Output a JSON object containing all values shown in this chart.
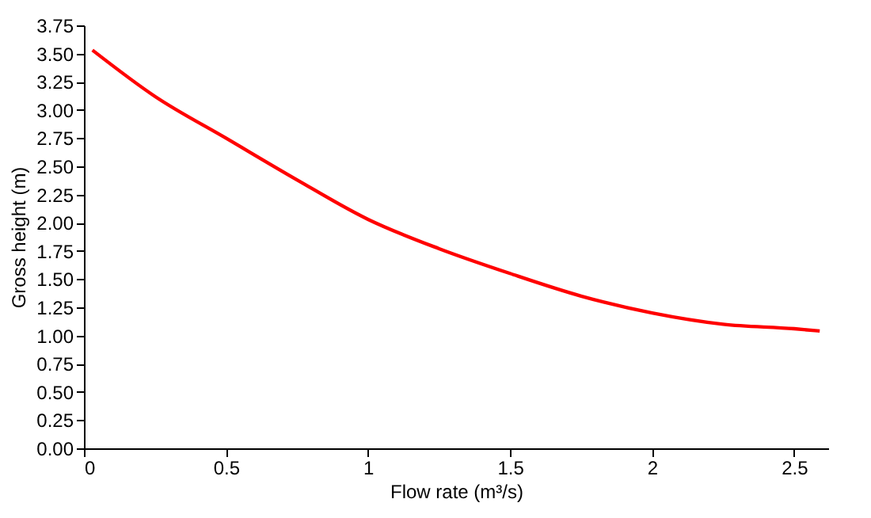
{
  "chart_data": {
    "type": "line",
    "xlabel": "Flow rate (m³/s)",
    "ylabel": "Gross height (m)",
    "x": [
      0.03,
      0.25,
      0.5,
      0.75,
      1.0,
      1.25,
      1.5,
      1.75,
      2.0,
      2.25,
      2.5,
      2.59
    ],
    "series": [
      {
        "color": "#ff0000",
        "values": [
          3.53,
          3.12,
          2.75,
          2.38,
          2.03,
          1.77,
          1.55,
          1.35,
          1.2,
          1.1,
          1.06,
          1.04
        ]
      }
    ],
    "xlim": [
      0,
      2.62
    ],
    "xticks": [
      0,
      0.5,
      1,
      1.5,
      2,
      2.5
    ],
    "ylim": [
      0,
      3.75
    ],
    "yticks": [
      {
        "value": 0,
        "label": "0.00"
      },
      {
        "value": 0.25,
        "label": "0.25"
      },
      {
        "value": 0.5,
        "label": "0.50"
      },
      {
        "value": 0.75,
        "label": "0.75"
      },
      {
        "value": 1,
        "label": "1.00"
      },
      {
        "value": 1.25,
        "label": "1.25"
      },
      {
        "value": 1.5,
        "label": "1.50"
      },
      {
        "value": 1.75,
        "label": "1.75"
      },
      {
        "value": 2,
        "label": "2.00"
      },
      {
        "value": 2.25,
        "label": "2.25"
      },
      {
        "value": 2.5,
        "label": "2.50"
      },
      {
        "value": 2.75,
        "label": "2.75"
      },
      {
        "value": 3,
        "label": "3.00"
      },
      {
        "value": 3.25,
        "label": "3.25"
      },
      {
        "value": 3.5,
        "label": "3.50"
      },
      {
        "value": 3.75,
        "label": "3.75"
      }
    ],
    "grid": false,
    "line_style": "solid",
    "marker": "none"
  }
}
